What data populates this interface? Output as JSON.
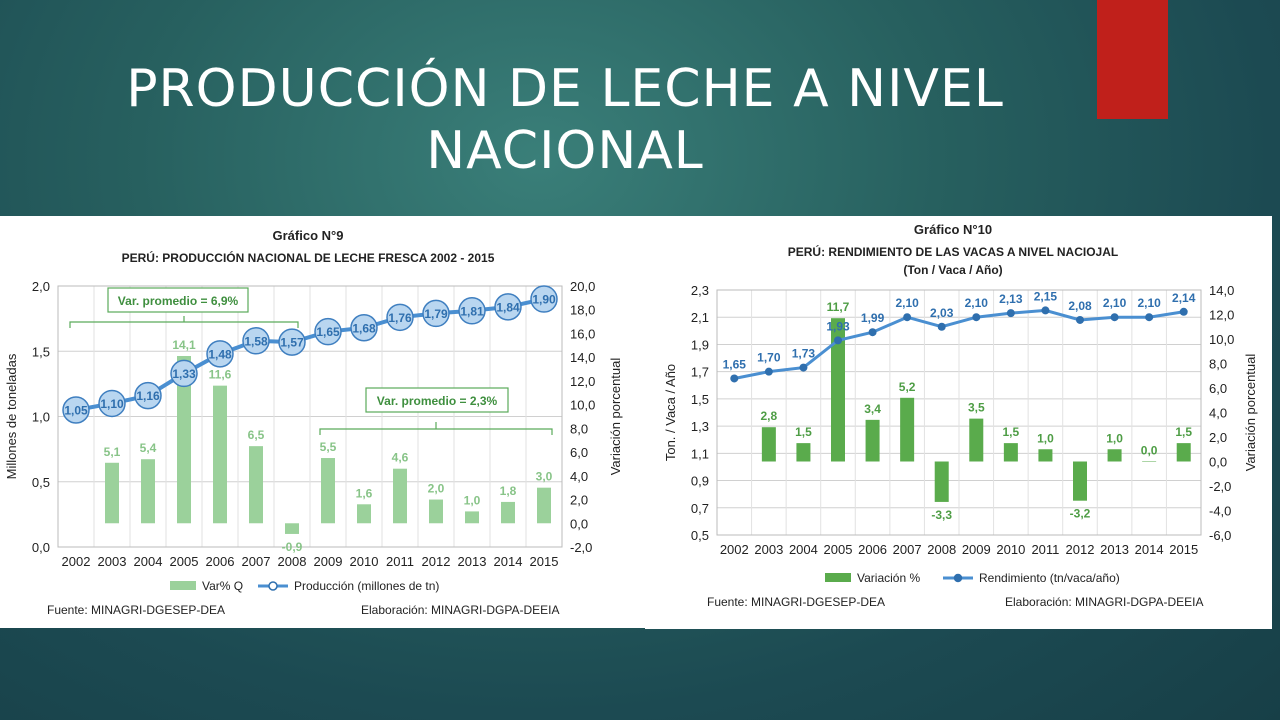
{
  "slide": {
    "title_line1": "PRODUCCIÓN DE LECHE A NIVEL",
    "title_line2": "NACIONAL",
    "accent_color": "#c0201b"
  },
  "chart_data": [
    {
      "type": "bar",
      "title": "Gráfico N°9",
      "subtitle": "PERÚ:  PRODUCCIÓN NACIONAL DE LECHE FRESCA 2002 - 2015",
      "categories": [
        "2002",
        "2003",
        "2004",
        "2005",
        "2006",
        "2007",
        "2008",
        "2009",
        "2010",
        "2011",
        "2012",
        "2013",
        "2014",
        "2015"
      ],
      "ylabel": "Millones de toneladas",
      "y2label": "Variación porcentual",
      "ylim": [
        0,
        2.0
      ],
      "y2lim": [
        -2.0,
        20.0
      ],
      "yticks": [
        "0,0",
        "0,5",
        "1,0",
        "1,5",
        "2,0"
      ],
      "y2ticks": [
        "-2,0",
        "0,0",
        "2,0",
        "4,0",
        "6,0",
        "8,0",
        "10,0",
        "12,0",
        "14,0",
        "16,0",
        "18,0",
        "20,0"
      ],
      "series": [
        {
          "name": "Var% Q",
          "type": "bar",
          "axis": "right",
          "color": "#9bd19b",
          "values": [
            null,
            5.1,
            5.4,
            14.1,
            11.6,
            6.5,
            -0.9,
            5.5,
            1.6,
            4.6,
            2.0,
            1.0,
            1.8,
            3.0
          ],
          "labels": [
            "",
            "5,1",
            "5,4",
            "14,1",
            "11,6",
            "6,5",
            "-0,9",
            "5,5",
            "1,6",
            "4,6",
            "2,0",
            "1,0",
            "1,8",
            "3,0"
          ]
        },
        {
          "name": "Producción (millones de tn)",
          "type": "line",
          "axis": "left",
          "color": "#4a8fd1",
          "values": [
            1.05,
            1.1,
            1.16,
            1.33,
            1.48,
            1.58,
            1.57,
            1.65,
            1.68,
            1.76,
            1.79,
            1.81,
            1.84,
            1.9
          ],
          "labels": [
            "1,05",
            "1,10",
            "1,16",
            "1,33",
            "1,48",
            "1,58",
            "1,57",
            "1,65",
            "1,68",
            "1,76",
            "1,79",
            "1,81",
            "1,84",
            "1,90"
          ]
        }
      ],
      "annotations": [
        "Var. promedio = 6,9%",
        "Var. promedio = 2,3%"
      ],
      "legend": [
        "Var% Q",
        "Producción (millones de tn)"
      ],
      "legend_position": "bottom",
      "footer_source": "Fuente: MINAGRI-DGESEP-DEA",
      "footer_elab": "Elaboración: MINAGRI-DGPA-DEEIA",
      "grid": true
    },
    {
      "type": "bar",
      "title": "Gráfico N°10",
      "subtitle": "PERÚ: RENDIMIENTO DE LAS VACAS A NIVEL NACIOJAL",
      "subtitle2": "(Ton / Vaca / Año)",
      "categories": [
        "2002",
        "2003",
        "2004",
        "2005",
        "2006",
        "2007",
        "2008",
        "2009",
        "2010",
        "2011",
        "2012",
        "2013",
        "2014",
        "2015"
      ],
      "ylabel": "Ton. / Vaca / Año",
      "y2label": "Variación porcentual",
      "ylim": [
        0.5,
        2.3
      ],
      "y2lim": [
        -6.0,
        14.0
      ],
      "yticks": [
        "0,5",
        "0,7",
        "0,9",
        "1,1",
        "1,3",
        "1,5",
        "1,7",
        "1,9",
        "2,1",
        "2,3"
      ],
      "y2ticks": [
        "-6,0",
        "-4,0",
        "-2,0",
        "0,0",
        "2,0",
        "4,0",
        "6,0",
        "8,0",
        "10,0",
        "12,0",
        "14,0"
      ],
      "series": [
        {
          "name": "Variación %",
          "type": "bar",
          "axis": "right",
          "color": "#5aab4c",
          "values": [
            null,
            2.8,
            1.5,
            11.7,
            3.4,
            5.2,
            -3.3,
            3.5,
            1.5,
            1.0,
            -3.2,
            1.0,
            0.0,
            1.5
          ],
          "labels": [
            "",
            "2,8",
            "1,5",
            "11,7",
            "3,4",
            "5,2",
            "-3,3",
            "3,5",
            "1,5",
            "1,0",
            "-3,2",
            "1,0",
            "0,0",
            "1,5"
          ]
        },
        {
          "name": "Rendimiento (tn/vaca/año)",
          "type": "line",
          "axis": "left",
          "color": "#4a8fd1",
          "values": [
            1.65,
            1.7,
            1.73,
            1.93,
            1.99,
            2.1,
            2.03,
            2.1,
            2.13,
            2.15,
            2.08,
            2.1,
            2.1,
            2.14
          ],
          "labels": [
            "1,65",
            "1,70",
            "1,73",
            "1,93",
            "1,99",
            "2,10",
            "2,03",
            "2,10",
            "2,13",
            "2,15",
            "2,08",
            "2,10",
            "2,10",
            "2,14"
          ]
        }
      ],
      "legend": [
        "Variación %",
        "Rendimiento (tn/vaca/año)"
      ],
      "legend_position": "bottom",
      "footer_source": "Fuente: MINAGRI-DGESEP-DEA",
      "footer_elab": "Elaboración: MINAGRI-DGPA-DEEIA",
      "grid": true
    }
  ]
}
